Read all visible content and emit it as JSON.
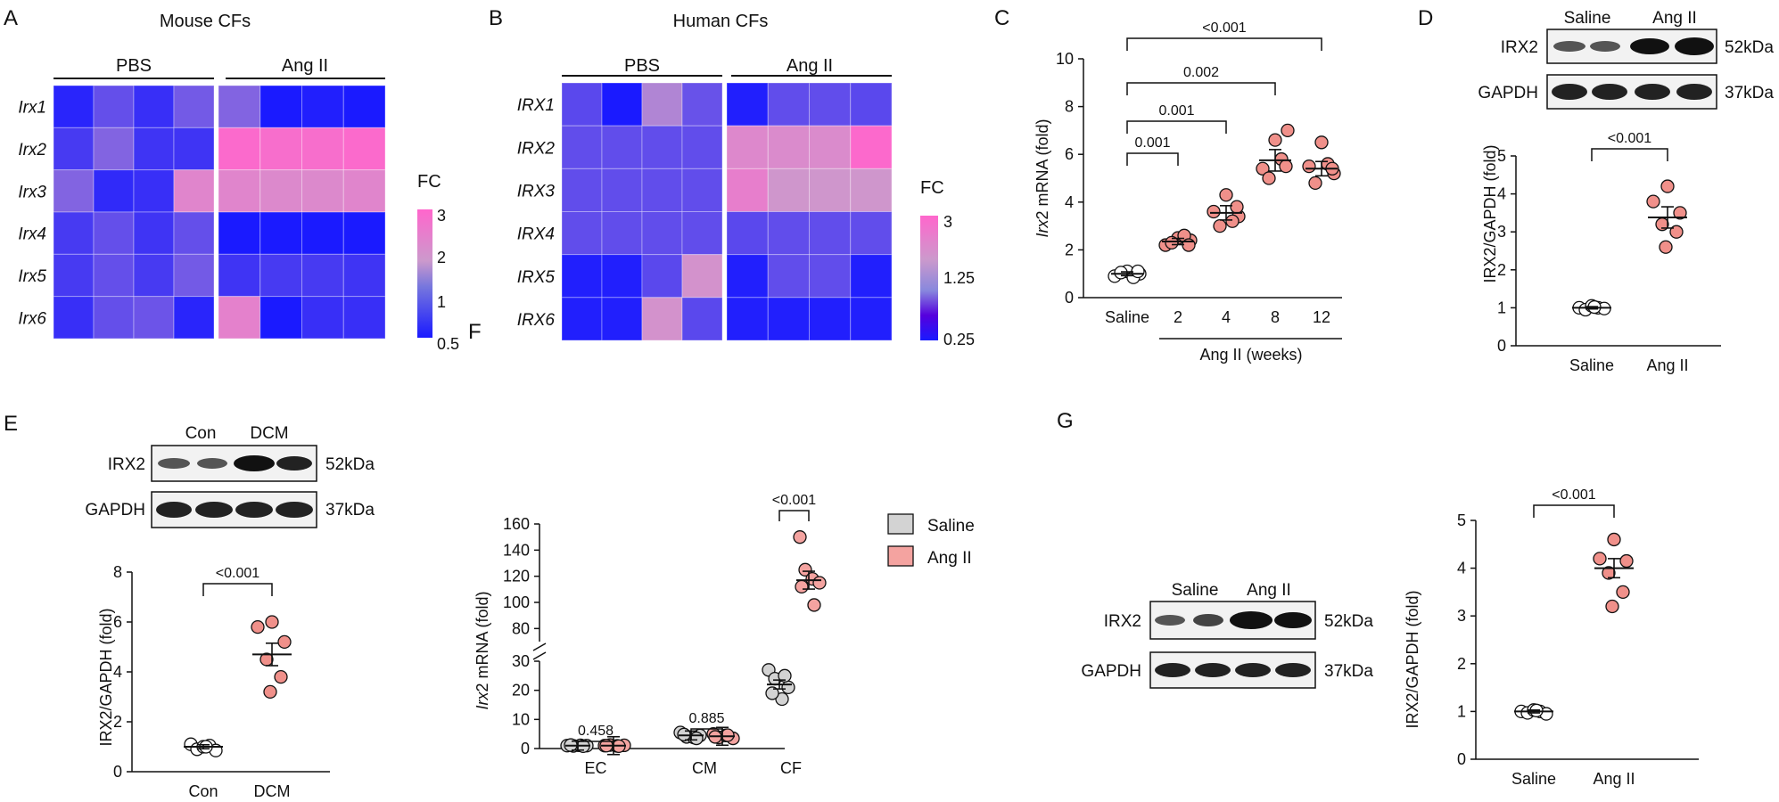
{
  "colors": {
    "low": "#1a1aff",
    "mid": "#cc99cc",
    "high": "#ff66cc",
    "saline_fill": "#ffffff",
    "ang_fill": "#f0908a",
    "gray_fill": "#d3d3d3",
    "pink_fill": "#f4a3a0"
  },
  "panel_A": {
    "letter": "A",
    "title": "Mouse CFs",
    "groups": [
      "PBS",
      "Ang II"
    ],
    "rows": [
      "Irx1",
      "Irx2",
      "Irx3",
      "Irx4",
      "Irx5",
      "Irx6"
    ],
    "scale_label": "FC",
    "scale_ticks": [
      "3",
      "2",
      "1",
      "0.5"
    ],
    "scale_values": [
      3,
      2,
      1,
      0.5
    ],
    "values": [
      [
        0.6,
        1.0,
        0.7,
        1.1,
        1.2,
        0.5,
        0.55,
        0.5
      ],
      [
        0.8,
        1.2,
        0.75,
        0.75,
        2.9,
        2.8,
        2.8,
        2.9
      ],
      [
        1.2,
        0.65,
        0.7,
        2.2,
        2.2,
        2.1,
        2.1,
        2.2
      ],
      [
        0.8,
        1.0,
        0.75,
        1.0,
        0.5,
        0.5,
        0.5,
        0.5
      ],
      [
        0.8,
        1.0,
        0.8,
        1.1,
        0.75,
        0.8,
        0.8,
        0.75
      ],
      [
        0.7,
        1.0,
        1.05,
        0.6,
        2.3,
        0.5,
        0.7,
        0.7
      ]
    ]
  },
  "panel_B": {
    "letter": "B",
    "title": "Human CFs",
    "groups": [
      "PBS",
      "Ang II"
    ],
    "rows": [
      "IRX1",
      "IRX2",
      "IRX3",
      "IRX4",
      "IRX5",
      "IRX6"
    ],
    "scale_label": "FC",
    "scale_ticks": [
      "3",
      "1.25",
      "0.25"
    ],
    "scale_values": [
      3,
      1.25,
      0.25
    ],
    "values": [
      [
        0.7,
        0.25,
        1.3,
        0.8,
        0.3,
        0.75,
        0.75,
        0.7
      ],
      [
        0.75,
        0.75,
        0.75,
        0.75,
        2.0,
        1.9,
        1.9,
        2.9
      ],
      [
        0.75,
        0.75,
        0.75,
        0.75,
        2.3,
        1.6,
        1.6,
        1.6
      ],
      [
        0.75,
        0.75,
        0.75,
        0.75,
        0.7,
        0.75,
        0.75,
        0.75
      ],
      [
        0.3,
        0.3,
        0.7,
        1.7,
        0.3,
        0.75,
        0.75,
        0.3
      ],
      [
        0.3,
        0.3,
        1.7,
        0.7,
        0.3,
        0.3,
        0.3,
        0.3
      ]
    ]
  },
  "panel_C": {
    "letter": "C",
    "ylabel_italic": "Irx",
    "ylabel_rest": "2 mRNA (fold)",
    "xlabel": "Ang II (weeks)",
    "categories": [
      "Saline",
      "2",
      "4",
      "8",
      "12"
    ],
    "yticks": [
      "0",
      "2",
      "4",
      "6",
      "8",
      "10"
    ],
    "ylim": [
      0,
      10
    ],
    "means": [
      1.0,
      2.35,
      3.55,
      5.75,
      5.4
    ],
    "sem": [
      0.08,
      0.13,
      0.3,
      0.45,
      0.3
    ],
    "points": [
      [
        1.1,
        0.9,
        1.0,
        1.05,
        0.85,
        1.1
      ],
      [
        2.5,
        2.2,
        2.4,
        2.3,
        2.6,
        2.2
      ],
      [
        4.3,
        3.6,
        3.4,
        3.0,
        3.2,
        3.8
      ],
      [
        6.6,
        5.4,
        7.0,
        5.0,
        5.8,
        5.5
      ],
      [
        6.5,
        5.5,
        5.2,
        4.8,
        5.6,
        5.4
      ]
    ],
    "comparisons": [
      "0.001",
      "0.001",
      "0.002",
      "<0.001"
    ]
  },
  "panel_D": {
    "letter": "D",
    "lanes": [
      "Saline",
      "Ang II"
    ],
    "bands": [
      "IRX2",
      "GAPDH"
    ],
    "sizes": [
      "52kDa",
      "37kDa"
    ],
    "ylabel": "IRX2/GAPDH (fold)",
    "categories": [
      "Saline",
      "Ang II"
    ],
    "yticks": [
      "0",
      "1",
      "2",
      "3",
      "4",
      "5"
    ],
    "ylim": [
      0,
      5
    ],
    "means": [
      1.0,
      3.38
    ],
    "sem": [
      0.03,
      0.28
    ],
    "points": [
      [
        1.0,
        0.95,
        1.05,
        1.0,
        0.98,
        1.02
      ],
      [
        4.2,
        3.8,
        3.5,
        3.2,
        3.0,
        2.6
      ]
    ],
    "p": "<0.001"
  },
  "panel_E": {
    "letter": "E",
    "lanes": [
      "Con",
      "DCM"
    ],
    "bands": [
      "IRX2",
      "GAPDH"
    ],
    "sizes": [
      "52kDa",
      "37kDa"
    ],
    "ylabel": "IRX2/GAPDH (fold)",
    "categories": [
      "Con",
      "DCM"
    ],
    "yticks": [
      "0",
      "2",
      "4",
      "6",
      "8"
    ],
    "ylim": [
      0,
      8
    ],
    "means": [
      1.0,
      4.7
    ],
    "sem": [
      0.08,
      0.45
    ],
    "points": [
      [
        1.1,
        0.9,
        1.0,
        1.05,
        0.85,
        1.0
      ],
      [
        6.0,
        5.8,
        5.2,
        4.5,
        3.8,
        3.2
      ]
    ],
    "p": "<0.001"
  },
  "panel_F": {
    "letter": "F",
    "ylabel_italic": "Irx",
    "ylabel_rest": "2 mRNA (fold)",
    "categories": [
      "EC",
      "CM",
      "CF"
    ],
    "series": [
      {
        "name": "Saline"
      },
      {
        "name": "Ang II"
      }
    ],
    "yticks_low": [
      "0",
      "10",
      "20",
      "30"
    ],
    "yticks_high": [
      "80",
      "100",
      "120",
      "140",
      "160"
    ],
    "saline_means": [
      1.0,
      4.5,
      22.0
    ],
    "ang_means": [
      1.0,
      4.2,
      117.0
    ],
    "saline_points": [
      [
        1.0,
        0.9,
        1.1,
        1.0,
        1.2,
        0.8
      ],
      [
        5.5,
        4.0,
        3.8,
        4.5,
        4.8,
        3.5
      ],
      [
        27.0,
        24.0,
        17.0,
        21.0,
        19.0,
        25.0
      ]
    ],
    "ang_points": [
      [
        1.0,
        1.2,
        0.9,
        1.1,
        1.0,
        0.8
      ],
      [
        5.0,
        3.8,
        4.5,
        3.5,
        4.0,
        4.6
      ],
      [
        150.0,
        125.0,
        118.0,
        115.0,
        112.0,
        98.0
      ]
    ],
    "pvals": [
      "0.458",
      "0.885",
      "<0.001"
    ]
  },
  "panel_G": {
    "letter": "G",
    "lanes": [
      "Saline",
      "Ang II"
    ],
    "bands": [
      "IRX2",
      "GAPDH"
    ],
    "sizes": [
      "52kDa",
      "37kDa"
    ],
    "ylabel": "IRX2/GAPDH (fold)",
    "categories": [
      "Saline",
      "Ang II"
    ],
    "yticks": [
      "0",
      "1",
      "2",
      "3",
      "4",
      "5"
    ],
    "ylim": [
      0,
      5
    ],
    "means": [
      1.0,
      4.0
    ],
    "sem": [
      0.03,
      0.2
    ],
    "points": [
      [
        1.0,
        0.97,
        1.03,
        1.0,
        0.95,
        1.02
      ],
      [
        4.6,
        4.2,
        4.15,
        3.9,
        3.5,
        3.2
      ]
    ],
    "p": "<0.001"
  }
}
